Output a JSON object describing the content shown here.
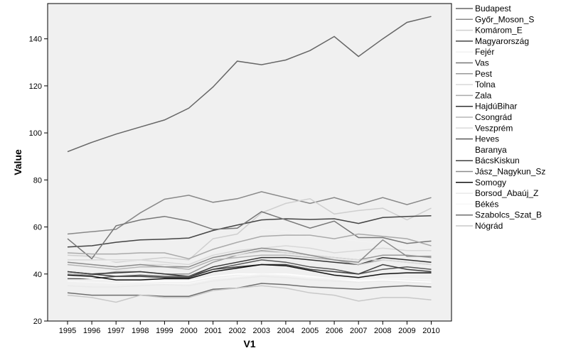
{
  "chart_data": {
    "type": "line",
    "xlabel": "V1",
    "ylabel": "Value",
    "ylim": [
      20,
      155
    ],
    "yticks": [
      20,
      40,
      60,
      80,
      100,
      120,
      140
    ],
    "legend_position": "right",
    "x": [
      1995,
      1996,
      1997,
      1998,
      1999,
      2000,
      2001,
      2002,
      2003,
      2004,
      2005,
      2006,
      2007,
      2008,
      2009,
      2010
    ],
    "series": [
      {
        "name": "Budapest",
        "color": "#666666",
        "values": [
          92,
          96,
          99.5,
          102.5,
          105.5,
          110.5,
          119.5,
          130.5,
          129,
          131,
          135,
          141,
          132.5,
          140,
          147,
          149.5
        ]
      },
      {
        "name": "Győr_Moson_S",
        "color": "#888888",
        "values": [
          57,
          58,
          59,
          66,
          71.8,
          73.5,
          70.5,
          72,
          75,
          72.5,
          70,
          72.5,
          69.5,
          72.5,
          69.5,
          72.5
        ]
      },
      {
        "name": "Komárom_E",
        "color": "#cfcfcf",
        "values": [
          48,
          47.5,
          45,
          46,
          47,
          46,
          55,
          57,
          66,
          70,
          72,
          65.5,
          67,
          68,
          63,
          68
        ]
      },
      {
        "name": "Magyarország",
        "color": "#444444",
        "values": [
          51.5,
          52,
          53.5,
          54.5,
          54.8,
          55.3,
          58.5,
          60.8,
          63,
          63.5,
          63.2,
          63.5,
          61.5,
          64,
          64.5,
          64.8
        ]
      },
      {
        "name": "Fejér",
        "color": "#f2f2f2",
        "values": [
          47,
          46,
          45.5,
          46,
          45,
          44.5,
          50,
          52,
          59,
          58,
          56,
          55,
          54,
          53,
          51,
          49
        ]
      },
      {
        "name": "Vas",
        "color": "#777777",
        "values": [
          55,
          46.5,
          60.5,
          63,
          64.5,
          62.5,
          59,
          59.5,
          66.5,
          63,
          59.5,
          62.5,
          55.5,
          55.5,
          53,
          54
        ]
      },
      {
        "name": "Pest",
        "color": "#999999",
        "values": [
          40,
          39.5,
          41,
          41,
          40,
          40,
          45,
          48,
          50,
          49,
          48,
          47,
          46,
          48,
          48,
          47
        ]
      },
      {
        "name": "Tolna",
        "color": "#d8d8d8",
        "values": [
          46,
          46,
          46,
          46,
          45,
          44,
          48,
          50,
          51,
          52,
          51,
          49,
          50,
          51,
          50,
          50
        ]
      },
      {
        "name": "Zala",
        "color": "#aaaaaa",
        "values": [
          49,
          48.5,
          48.5,
          49,
          49,
          46.5,
          50.5,
          53.5,
          56,
          56.5,
          56.5,
          55,
          57,
          56,
          55,
          52
        ]
      },
      {
        "name": "HajdúBihar",
        "color": "#333333",
        "values": [
          41,
          40,
          40.5,
          41,
          40,
          39,
          43,
          45,
          47,
          47,
          46,
          45,
          44,
          47,
          46,
          45
        ]
      },
      {
        "name": "Csongrád",
        "color": "#b5b5b5",
        "values": [
          44,
          43,
          42,
          43,
          43,
          42,
          46,
          47,
          48,
          48,
          47,
          46,
          44,
          46,
          45,
          44
        ]
      },
      {
        "name": "Veszprém",
        "color": "#dadada",
        "values": [
          45,
          44,
          43,
          44,
          44,
          43,
          47,
          48,
          49.5,
          49,
          48,
          47,
          46,
          46,
          45,
          44
        ]
      },
      {
        "name": "Heves",
        "color": "#5a5a5a",
        "values": [
          38,
          38,
          39,
          39.5,
          39,
          39,
          42,
          44,
          46,
          45,
          43,
          42,
          40,
          42,
          43,
          42
        ]
      },
      {
        "name": "Baranya",
        "color": "#ffffff",
        "values": [
          39,
          38,
          37.5,
          37,
          37,
          37,
          39,
          40,
          40,
          40,
          39,
          38,
          37,
          37.5,
          37,
          36.5
        ]
      },
      {
        "name": "BácsKiskun",
        "color": "#3f3f3f",
        "values": [
          41,
          40,
          39,
          39,
          38.5,
          38.5,
          42,
          43,
          44,
          44,
          42,
          41,
          40,
          44,
          42,
          41
        ]
      },
      {
        "name": "Jász_Nagykun_Sz",
        "color": "#8c8c8c",
        "values": [
          45,
          44,
          43,
          44,
          43,
          43,
          47,
          49,
          51,
          50,
          48,
          46,
          45,
          54.5,
          47.5,
          47.5
        ]
      },
      {
        "name": "Somogy",
        "color": "#111111",
        "values": [
          39.5,
          39,
          37.5,
          37.5,
          38,
          38,
          41,
          42.5,
          44,
          43.5,
          41.5,
          39.5,
          38.5,
          40,
          40.5,
          40.5
        ]
      },
      {
        "name": "Borsod_Abaúj_Z",
        "color": "#eaeaea",
        "values": [
          35,
          34.5,
          34.5,
          35,
          35.5,
          35,
          37,
          38,
          39,
          38.5,
          37.5,
          37,
          36.5,
          37,
          36.5,
          36
        ]
      },
      {
        "name": "Békés",
        "color": "#f7f7f7",
        "values": [
          37,
          36.5,
          36,
          36.5,
          36,
          36,
          38,
          39,
          40,
          39.5,
          38.5,
          38,
          37.5,
          38,
          38,
          37.5
        ]
      },
      {
        "name": "Szabolcs_Szat_B",
        "color": "#6e6e6e",
        "values": [
          32,
          31,
          31,
          31,
          30.5,
          30.5,
          33.5,
          34,
          36,
          35.5,
          34.5,
          34,
          33.5,
          34.5,
          35,
          34.5
        ]
      },
      {
        "name": "Nógrád",
        "color": "#c8c8c8",
        "values": [
          31,
          30,
          28,
          31,
          30,
          30,
          33,
          34,
          35,
          34,
          32,
          31,
          28.5,
          30,
          30,
          29
        ]
      }
    ]
  }
}
